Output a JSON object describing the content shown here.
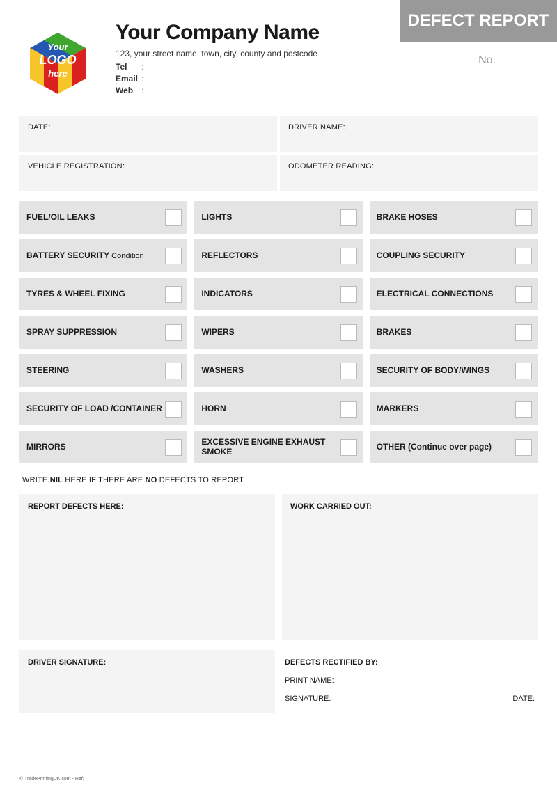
{
  "header": {
    "company_name": "Your Company Name",
    "address": "123, your street name, town, city, county and postcode",
    "tel_label": "Tel",
    "email_label": "Email",
    "web_label": "Web",
    "badge": "DEFECT REPORT",
    "no_label": "No.",
    "logo_line1": "Your",
    "logo_line2": "LOGO",
    "logo_line3": "here"
  },
  "info": {
    "date": "DATE:",
    "driver_name": "DRIVER NAME:",
    "vehicle_reg": "VEHICLE REGISTRATION:",
    "odometer": "ODOMETER READING:"
  },
  "checklist": [
    {
      "label": "FUEL/OIL LEAKS"
    },
    {
      "label": "LIGHTS"
    },
    {
      "label": "BRAKE HOSES"
    },
    {
      "label": "BATTERY SECURITY",
      "sub": "Condition"
    },
    {
      "label": "REFLECTORS"
    },
    {
      "label": "COUPLING SECURITY"
    },
    {
      "label": "TYRES & WHEEL FIXING"
    },
    {
      "label": "INDICATORS"
    },
    {
      "label": "ELECTRICAL CONNECTIONS"
    },
    {
      "label": "SPRAY SUPPRESSION"
    },
    {
      "label": "WIPERS"
    },
    {
      "label": "BRAKES"
    },
    {
      "label": "STEERING"
    },
    {
      "label": "WASHERS"
    },
    {
      "label": "SECURITY OF BODY/WINGS"
    },
    {
      "label": "SECURITY OF LOAD /CONTAINER"
    },
    {
      "label": "HORN"
    },
    {
      "label": "MARKERS"
    },
    {
      "label": "MIRRORS"
    },
    {
      "label": "EXCESSIVE ENGINE EXHAUST SMOKE"
    },
    {
      "label": "OTHER (Continue over page)"
    }
  ],
  "nil": {
    "pre": "WRITE ",
    "nil": "NIL",
    "mid": " HERE IF THERE ARE ",
    "no": "NO",
    "post": " DEFECTS TO REPORT"
  },
  "panels": {
    "report_defects": "REPORT DEFECTS HERE:",
    "work_carried": "WORK CARRIED OUT:"
  },
  "sig": {
    "driver": "DRIVER SIGNATURE:",
    "rectified": "DEFECTS RECTIFIED BY:",
    "print_name": "PRINT NAME:",
    "signature": "SIGNATURE:",
    "date": "DATE:"
  },
  "footer": "© TradePrintingUK.com - Ref:",
  "colors": {
    "badge_bg": "#999999",
    "light_bg": "#f3f4f3",
    "check_bg": "#e3e4e3",
    "logo_blue": "#2458b3",
    "logo_red": "#d9221f",
    "logo_green": "#3fa72e",
    "logo_yellow": "#f7c52a"
  }
}
